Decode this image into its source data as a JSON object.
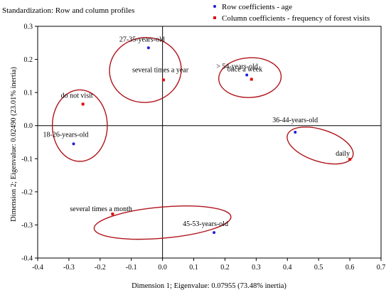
{
  "header": {
    "standardization": "Standardization: Row and column profiles"
  },
  "chart_data": {
    "type": "scatter",
    "title": "",
    "xlabel": "Dimension 1; Eigenvalue: 0.07955 (73.48% inertia)",
    "ylabel": "Dimension 2; Eigenvalue: 0.02490 (23.01% inertia)",
    "xlim": [
      -0.4,
      0.7
    ],
    "ylim": [
      -0.4,
      0.3
    ],
    "xticks": [
      "-0.4",
      "-0.3",
      "-0.2",
      "-0.1",
      "0.0",
      "0.1",
      "0.2",
      "0.3",
      "0.4",
      "0.5",
      "0.6",
      "0.7"
    ],
    "yticks": [
      "-0.4",
      "-0.3",
      "-0.2",
      "-0.1",
      "0.0",
      "0.1",
      "0.2",
      "0.3"
    ],
    "legend_position": "top-right",
    "series": [
      {
        "name": "Row coefficients - age",
        "color": "#1f1fd6",
        "marker": "circle",
        "points": [
          {
            "label": "27-35-years-old",
            "x": -0.045,
            "y": 0.235
          },
          {
            "label": "> 54-years-old",
            "x": 0.27,
            "y": 0.153
          },
          {
            "label": "18-26-years-old",
            "x": -0.285,
            "y": -0.055
          },
          {
            "label": "36-44-years-old",
            "x": 0.425,
            "y": -0.02
          },
          {
            "label": "45-53-years-old",
            "x": 0.165,
            "y": -0.323
          }
        ]
      },
      {
        "name": "Column coefficients - frequency of forest visits",
        "color": "#e01010",
        "marker": "square",
        "points": [
          {
            "label": "several times a year",
            "x": 0.003,
            "y": 0.138
          },
          {
            "label": "once a week",
            "x": 0.285,
            "y": 0.14
          },
          {
            "label": "do not visit",
            "x": -0.255,
            "y": 0.065
          },
          {
            "label": "daily",
            "x": 0.6,
            "y": -0.102
          },
          {
            "label": "several times a month",
            "x": -0.16,
            "y": -0.267
          }
        ]
      }
    ],
    "groups": [
      {
        "cx": -0.055,
        "cy": 0.168,
        "rx": 0.115,
        "ry": 0.098,
        "rot": -6
      },
      {
        "cx": 0.28,
        "cy": 0.145,
        "rx": 0.1,
        "ry": 0.06,
        "rot": -3
      },
      {
        "cx": -0.265,
        "cy": 0.0,
        "rx": 0.088,
        "ry": 0.108,
        "rot": 0
      },
      {
        "cx": 0.505,
        "cy": -0.06,
        "rx": 0.11,
        "ry": 0.048,
        "rot": 18
      },
      {
        "cx": 0.0,
        "cy": -0.293,
        "rx": 0.22,
        "ry": 0.047,
        "rot": -5
      }
    ],
    "group_color": "#b0141b",
    "axis_color": "#000000",
    "grid": false
  }
}
